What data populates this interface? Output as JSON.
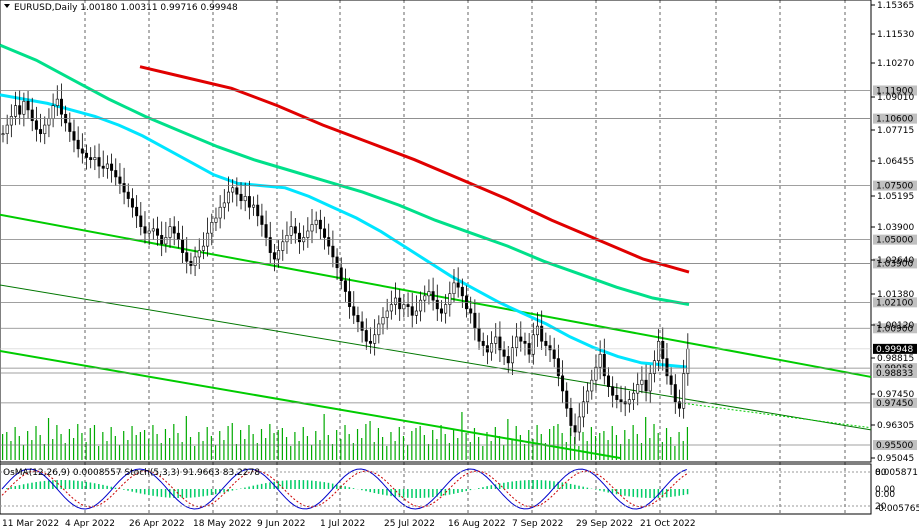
{
  "header": {
    "symbol_line": "EURUSD,Daily  1.00180 1.00311 0.99716 0.99948",
    "indicator_line": "OsMA(12,26,9) 0.0008557  Stoch(5,3,3) 91.9663 83.2278"
  },
  "price_axis": {
    "ticks": [
      "1.15365",
      "1.11530",
      "1.10270",
      "1.09010",
      "1.07715",
      "1.06455",
      "1.05195",
      "1.03900",
      "1.02640",
      "1.01380",
      "1.00120",
      "0.98815",
      "0.97450",
      "0.96305",
      "0.95045"
    ],
    "levels": [
      {
        "label": "1.11900",
        "price": 1.119
      },
      {
        "label": "1.10600",
        "price": 1.106
      },
      {
        "label": "1.07500",
        "price": 1.075
      },
      {
        "label": "1.05000",
        "price": 1.05
      },
      {
        "label": "1.03900",
        "price": 1.039
      },
      {
        "label": "1.02100",
        "price": 1.021
      },
      {
        "label": "1.00900",
        "price": 1.009
      },
      {
        "label": "0.99058",
        "price": 0.99058
      },
      {
        "label": "0.98833",
        "price": 0.98833
      },
      {
        "label": "0.97450",
        "price": 0.9745
      },
      {
        "label": "0.95500",
        "price": 0.955
      }
    ],
    "current": {
      "label": "0.99948",
      "price": 0.99948
    }
  },
  "indicator_axis": {
    "ticks": [
      "0.005871",
      "0.00",
      "0.00",
      "-0.005765"
    ],
    "stoch_levels": [
      "80",
      "20"
    ]
  },
  "time_axis": [
    "11 Mar 2022",
    "4 Apr 2022",
    "26 Apr 2022",
    "18 May 2022",
    "9 Jun 2022",
    "1 Jul 2022",
    "25 Jul 2022",
    "16 Aug 2022",
    "7 Sep 2022",
    "29 Sep 2022",
    "21 Oct 2022"
  ],
  "colors": {
    "bull_bear": "#000000",
    "ema50": "#00e5ff",
    "ema144": "#00e08a",
    "ema200": "#e00000",
    "channel": "#00cc00",
    "volume": "#00aa00",
    "osma": "#00cc66",
    "stoch_main": "#0000cc",
    "stoch_signal": "#cc0000"
  },
  "chart_data": {
    "type": "candlestick",
    "symbol": "EURUSD",
    "timeframe": "Daily",
    "ylim": [
      0.949,
      1.159
    ],
    "close_series": [
      1.099,
      1.103,
      1.107,
      1.112,
      1.108,
      1.114,
      1.11,
      1.105,
      1.101,
      1.099,
      1.103,
      1.106,
      1.112,
      1.115,
      1.108,
      1.104,
      1.1,
      1.096,
      1.092,
      1.09,
      1.088,
      1.087,
      1.088,
      1.084,
      1.083,
      1.085,
      1.082,
      1.079,
      1.076,
      1.072,
      1.069,
      1.065,
      1.061,
      1.056,
      1.053,
      1.054,
      1.055,
      1.052,
      1.048,
      1.051,
      1.056,
      1.053,
      1.05,
      1.044,
      1.04,
      1.038,
      1.042,
      1.045,
      1.047,
      1.053,
      1.058,
      1.06,
      1.065,
      1.067,
      1.072,
      1.074,
      1.071,
      1.068,
      1.07,
      1.065,
      1.066,
      1.061,
      1.057,
      1.051,
      1.044,
      1.041,
      1.045,
      1.049,
      1.052,
      1.056,
      1.053,
      1.049,
      1.051,
      1.054,
      1.057,
      1.059,
      1.055,
      1.051,
      1.047,
      1.042,
      1.037,
      1.031,
      1.026,
      1.019,
      1.015,
      1.012,
      1.008,
      1.003,
      1.002,
      1.006,
      1.011,
      1.014,
      1.017,
      1.02,
      1.023,
      1.018,
      1.02,
      1.019,
      1.015,
      1.017,
      1.022,
      1.024,
      1.026,
      1.022,
      1.018,
      1.016,
      1.02,
      1.025,
      1.03,
      1.028,
      1.024,
      1.018,
      1.016,
      1.009,
      1.003,
      1.001,
      0.998,
      1.002,
      1.005,
      0.999,
      0.996,
      0.993,
      1.0,
      1.005,
      1.003,
      1.002,
      0.997,
      1.006,
      1.01,
      1.003,
      1.001,
      0.999,
      0.995,
      0.987,
      0.98,
      0.972,
      0.964,
      0.961,
      0.968,
      0.975,
      0.98,
      0.985,
      0.991,
      0.997,
      0.987,
      0.982,
      0.978,
      0.976,
      0.975,
      0.974,
      0.976,
      0.979,
      0.983,
      0.985,
      0.98,
      0.988,
      0.994,
      1.003,
      0.995,
      0.987,
      0.983,
      0.975,
      0.972,
      0.988,
      0.9995
    ],
    "ema50": [
      1.117,
      1.115,
      1.113,
      1.11,
      1.107,
      1.103,
      1.098,
      1.092,
      1.086,
      1.08,
      1.076,
      1.075,
      1.074,
      1.07,
      1.065,
      1.06,
      1.054,
      1.047,
      1.04,
      1.033,
      1.027,
      1.021,
      1.016,
      1.011,
      1.005,
      1.0,
      0.996,
      0.993,
      0.992,
      0.991
    ],
    "ema144": [
      1.14,
      1.133,
      1.124,
      1.115,
      1.107,
      1.1,
      1.093,
      1.087,
      1.082,
      1.077,
      1.072,
      1.066,
      1.059,
      1.053,
      1.047,
      1.04,
      1.034,
      1.028,
      1.023,
      1.02
    ],
    "ema200": [
      1.13,
      1.125,
      1.12,
      1.112,
      1.103,
      1.095,
      1.087,
      1.078,
      1.069,
      1.059,
      1.05,
      1.041,
      1.035
    ]
  }
}
